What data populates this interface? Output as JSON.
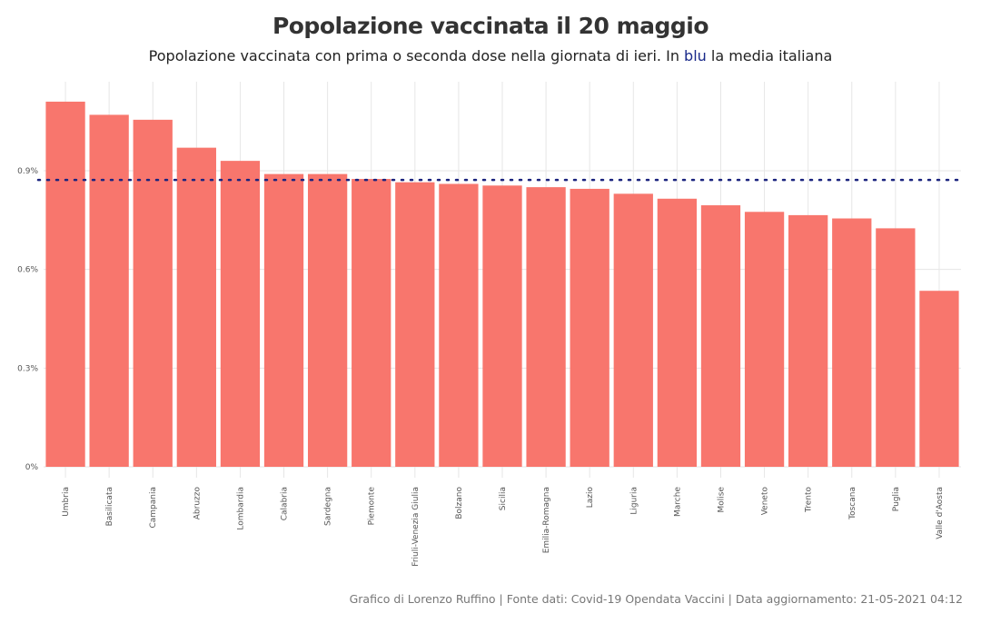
{
  "title": "Popolazione vaccinata il 20 maggio",
  "subtitle": {
    "before": "Popolazione vaccinata con prima o seconda dose nella giornata di ieri. In ",
    "highlight": "blu",
    "after": " la media italiana"
  },
  "caption": "Grafico di Lorenzo Ruffino | Fonte dati: Covid-19 Opendata Vaccini | Data aggiornamento: 21-05-2021 04:12",
  "colors": {
    "bar": "#F8766D",
    "mean_line": "#1a237e",
    "grid": "#e6e6e6"
  },
  "chart_data": {
    "type": "bar",
    "title": "Popolazione vaccinata il 20 maggio",
    "xlabel": "",
    "ylabel": "",
    "ylim": [
      0,
      1.17
    ],
    "yticks": [
      0,
      0.3,
      0.6,
      0.9
    ],
    "ytick_labels": [
      "0%",
      "0.3%",
      "0.6%",
      "0.9%"
    ],
    "grid": true,
    "categories": [
      "Umbria",
      "Basilicata",
      "Campania",
      "Abruzzo",
      "Lombardia",
      "Calabria",
      "Sardegna",
      "Piemonte",
      "Friuli-Venezia Giulia",
      "Bolzano",
      "Sicilia",
      "Emilia-Romagna",
      "Lazio",
      "Liguria",
      "Marche",
      "Molise",
      "Veneto",
      "Trento",
      "Toscana",
      "Puglia",
      "Valle d'Aosta"
    ],
    "values": [
      1.11,
      1.07,
      1.055,
      0.97,
      0.93,
      0.89,
      0.89,
      0.875,
      0.865,
      0.86,
      0.855,
      0.85,
      0.845,
      0.83,
      0.815,
      0.795,
      0.775,
      0.765,
      0.755,
      0.725,
      0.535
    ],
    "unit": "%",
    "reference_line": {
      "label": "media italiana",
      "value": 0.872,
      "style": "dotted"
    }
  }
}
